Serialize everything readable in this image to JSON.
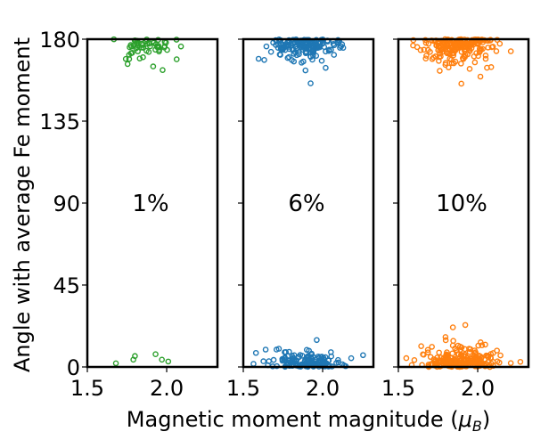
{
  "chart_data": {
    "type": "scatter",
    "xlabel_text": "Magnetic moment magnitude (",
    "xlabel_symbol": "μ",
    "xlabel_subscript": "B",
    "xlabel_close": ")",
    "ylabel": "Angle with average Fe moment",
    "xlim": [
      1.5,
      2.32
    ],
    "ylim": [
      0,
      180
    ],
    "xticks": [
      1.5,
      2.0
    ],
    "xtick_labels": [
      "1.5",
      "2.0"
    ],
    "yticks": [
      0,
      45,
      90,
      135,
      180
    ],
    "ytick_labels": [
      "0",
      "45",
      "90",
      "135",
      "180"
    ],
    "marker": "open circle",
    "panels": [
      {
        "annotation": "1%",
        "color": "#2ca02c",
        "seed": 11,
        "clusters": [
          {
            "n": 55,
            "x_mean": 1.88,
            "x_sd": 0.09,
            "y_base": 180,
            "y_spread": 6,
            "direction": -1
          },
          {
            "n": 3,
            "x_mean": 1.88,
            "x_sd": 0.09,
            "y_base": 180,
            "y_spread": 14,
            "direction": -1
          }
        ],
        "points": [
          [
            1.68,
            2
          ],
          [
            1.79,
            4
          ],
          [
            1.8,
            6
          ],
          [
            1.93,
            7
          ],
          [
            1.97,
            4
          ],
          [
            2.01,
            3
          ]
        ]
      },
      {
        "annotation": "6%",
        "color": "#1f77b4",
        "seed": 23,
        "clusters": [
          {
            "n": 150,
            "x_mean": 1.88,
            "x_sd": 0.11,
            "y_base": 180,
            "y_spread": 6,
            "direction": -1
          },
          {
            "n": 12,
            "x_mean": 1.86,
            "x_sd": 0.1,
            "y_base": 180,
            "y_spread": 14,
            "direction": -1
          },
          {
            "n": 135,
            "x_mean": 1.88,
            "x_sd": 0.11,
            "y_base": 0,
            "y_spread": 5,
            "direction": 1
          },
          {
            "n": 10,
            "x_mean": 1.86,
            "x_sd": 0.1,
            "y_base": 0,
            "y_spread": 11,
            "direction": 1
          }
        ],
        "points": []
      },
      {
        "annotation": "10%",
        "color": "#ff7f0e",
        "seed": 37,
        "clusters": [
          {
            "n": 185,
            "x_mean": 1.89,
            "x_sd": 0.11,
            "y_base": 180,
            "y_spread": 7,
            "direction": -1
          },
          {
            "n": 14,
            "x_mean": 1.88,
            "x_sd": 0.1,
            "y_base": 180,
            "y_spread": 14,
            "direction": -1
          },
          {
            "n": 190,
            "x_mean": 1.9,
            "x_sd": 0.13,
            "y_base": 0,
            "y_spread": 6,
            "direction": 1
          },
          {
            "n": 14,
            "x_mean": 1.88,
            "x_sd": 0.1,
            "y_base": 0,
            "y_spread": 14,
            "direction": 1
          }
        ],
        "points": []
      }
    ]
  }
}
